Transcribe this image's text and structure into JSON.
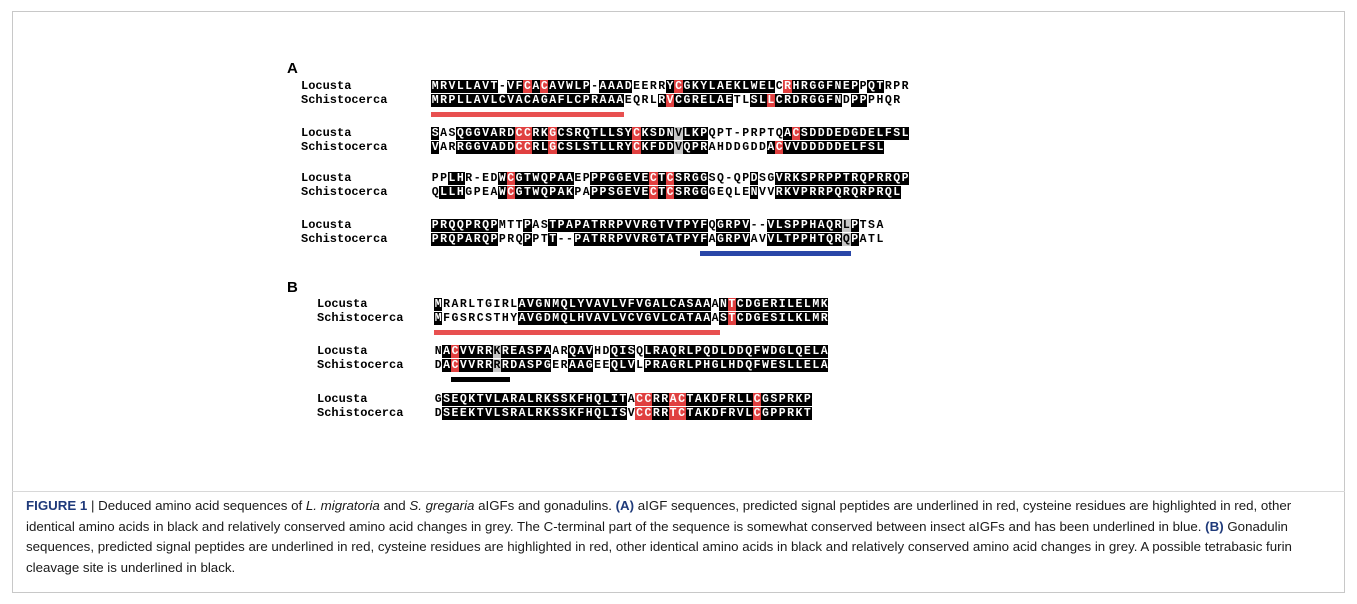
{
  "figure": {
    "panels": [
      {
        "label": "A",
        "blocks": [
          {
            "rows": [
              {
                "species": "Locusta",
                "seq": "MRVLLAVT-VFCACAVWLP-AAADEERRYCGKYLAEKLWELCRHRGGFNEPPQTRPR",
                "shade": "KKKKKKKKWKKRKRKKKKKWKKKKWWWWKRKKKKKKKKKKKWRKKKKKKKKWKKWWWWW"
              },
              {
                "species": "Schistocerca",
                "seq": "MRPLLAVLCVACAGAFLCPRAAAEQRLRVCGRELAETLSLLCRDRGGFNDPPPHQR",
                "shade": "KKKKKKKKKKKKKKKKKKKKKKKWWWWKRKKKKKKKWWKKRKKKKKKKKWKKWWWWW"
              }
            ],
            "underline": {
              "color": "#e85050",
              "start": 0,
              "end": 23
            }
          },
          {
            "rows": [
              {
                "species": "Locusta",
                "seq": "SASQGGVARDCCRKGCSRQTLLSYCKSDNVLKPQPT-PRPTQACSDDDEDGDELFSL",
                "shade": "KWWKKKKKKKRRKKRKKKKKKKKKRKKKKGKKKWWWWWWWWWKRKKKKKKKKKKKKKK"
              },
              {
                "species": "Schistocerca",
                "seq": "VARRGGVADDCCRLGCSLSTLLRYCKFDDVQPRAHDDGDDACVVDDDDDELFSL",
                "shade": "KWWKKKKKKKRRKKRKKKKKKKKKRKKKKGKKKWWWWWWWKRKKKKKKKKKKKKKK"
              }
            ]
          },
          {
            "rows": [
              {
                "species": "Locusta",
                "seq": "PPLHR-EDWCGTWQPAAEPPPGGEVECTCSRGGSQ-QPDSGVRKSPRPPTRQPRRQP",
                "shade": "WWKKWWWWKRKKKKKKKWWKKKKKKKRKRKKKKWWWWWKWWKKKKKKKKKKKKKKKKK"
              },
              {
                "species": "Schistocerca",
                "seq": "QLLHGPEAWCGTWQPAKPAPPSGEVECTCSRGGGEQLENVVRKVPRRPQRQRPRQL",
                "shade": "WKKKWWWWKRKKKKKKKWWKKKKKKKRKRKKKKWWWWWKWWKKKKKKKKKKKKKKK"
              }
            ]
          },
          {
            "rows": [
              {
                "species": "Locusta",
                "seq": "PRQQPRQPMTTPASTPAPATRRPVVRGTVTPYFQGRPV--VLSPPHAQRLPTSA",
                "shade": "KKKKKKKKWWWKWWKKKKKKKKKKKKKKKKKKKWKKKKWWKKKKKKKKKGKWWW"
              },
              {
                "species": "Schistocerca",
                "seq": "PRQPARQPPRQPPTT--PATRRPVVRGTATPYFAGRPVAVVLTPPHTQRQPATL",
                "shade": "KKKKKKKKWWWKWWKKKKKKKKKKKKKKKKKKKWKKKKWWKKKKKKKKKGKWWW"
              }
            ],
            "underline": {
              "color": "#2a47a8",
              "start": 32,
              "end": 50
            }
          }
        ]
      },
      {
        "label": "B",
        "blocks": [
          {
            "rows": [
              {
                "species": "Locusta",
                "seq": "MRARLTGIRLAVGNMQLYVAVLVFVGALCASAAANTCDGERILELMK",
                "shade": "KWWWWWWWWWKKKKKKKKKKKKKKKKKKKKKKKWKRKKKKKKKKKKK"
              },
              {
                "species": "Schistocerca",
                "seq": "MFGSRCSTHYAVGDMQLHVAVLVCVGVLCATAAASTCDGESILKLMR",
                "shade": "KWWWWWWWWWKKKKKKKKKKKKKKKKKKKKKKKWKRKKKKKKKKKKK"
              }
            ],
            "underline": {
              "color": "#e85050",
              "start": 0,
              "end": 34
            }
          },
          {
            "rows": [
              {
                "species": "Locusta",
                "seq": "NACVVRRKREASPAARQAVHDQISQLRAQRLPQDLDDQFWDGLQELA",
                "shade": "WKRKKKKGKKKKKKWWKKKWWKKKWKKKKKKKKKKKKKKKKKKKKKK"
              },
              {
                "species": "Schistocerca",
                "seq": "DACVVRRRRDASPGERAAGEEQLVLPRAGRLPHGLHDQFWESLLELA",
                "shade": "WKRKKKKGKKKKKKWWKKKWWKKKWKKKKKKKKKKKKKKKKKKKKKK"
              }
            ],
            "underline": {
              "color": "#000000",
              "start": 2,
              "end": 9
            }
          },
          {
            "rows": [
              {
                "species": "Locusta",
                "seq": "GSEQKTVLARALRKSSKFHQLITACCRRACTAKDFRLLCGSPRKP",
                "shade": "WKKKKKKKKKKKKKKKKKKKKKKWRRKKRRKKKKKKKKRKKKKKK"
              },
              {
                "species": "Schistocerca",
                "seq": "DSEEKTVLSRALRKSSKFHQLISVCCRRTCTAKDFRVLCGPPRKT",
                "shade": "WKKKKKKKKKKKKKKKKKKKKKKWRRKKRRKKKKKKKKRKKKKKK"
              }
            ]
          }
        ]
      }
    ]
  },
  "caption": {
    "figure_label": "FIGURE 1",
    "separator": " | ",
    "title_pre": "Deduced amino acid sequences of ",
    "title_it1": "L. migratoria",
    "title_mid": " and ",
    "title_it2": "S. gregaria",
    "title_post": " aIGFs and gonadulins. ",
    "a_label": "(A)",
    "a_text": " aIGF sequences, predicted signal peptides are underlined in red, cysteine residues are highlighted in red, other identical amino acids in black and relatively conserved amino acid changes in grey. The C-terminal part of the sequence is somewhat conserved between insect aIGFs and has been underlined in blue. ",
    "b_label": "(B)",
    "b_text": " Gonadulin sequences, predicted signal peptides are underlined in red, cysteine residues are highlighted in red, other identical amino acids in black and relatively conserved amino acid changes in grey. A possible tetrabasic furin cleavage site is underlined in black."
  }
}
